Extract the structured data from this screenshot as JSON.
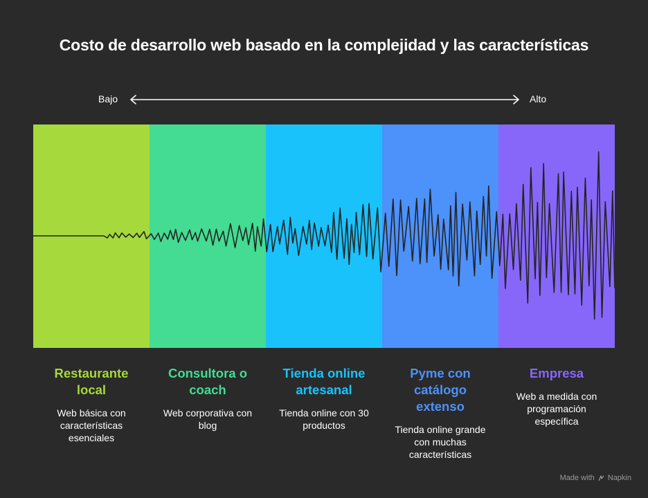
{
  "title": "Costo de desarrollo web basado en la complejidad y las características",
  "axis": {
    "low": "Bajo",
    "high": "Alto"
  },
  "colors": {
    "background": "#2a2a2a",
    "bands": [
      "#a6d93b",
      "#43dc92",
      "#1ac2fb",
      "#4d91fb",
      "#8767fa"
    ],
    "wave": "#232323"
  },
  "categories": [
    {
      "title": "Restaurante local",
      "description": "Web básica con características esenciales",
      "color": "#a6d93b"
    },
    {
      "title": "Consultora o coach",
      "description": "Web corporativa con blog",
      "color": "#43dc92"
    },
    {
      "title": "Tienda online artesanal",
      "description": "Tienda online con 30 productos",
      "color": "#1ac2fb"
    },
    {
      "title": "Pyme con catálogo extenso",
      "description": "Tienda online grande con muchas características",
      "color": "#4d91fb"
    },
    {
      "title": "Empresa",
      "description": "Web a medida con programación específica",
      "color": "#8767fa"
    }
  ],
  "credit": {
    "prefix": "Made with",
    "brand": "Napkin"
  }
}
